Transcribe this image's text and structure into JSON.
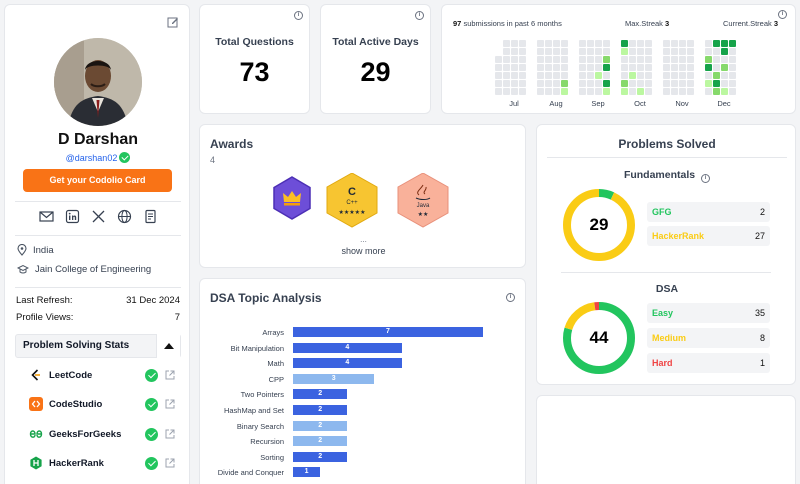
{
  "profile": {
    "name": "D Darshan",
    "handle": "@darshan02",
    "card_button": "Get your Codolio Card",
    "country": "India",
    "college": "Jain College of Engineering",
    "last_refresh_label": "Last Refresh:",
    "last_refresh_value": "31 Dec 2024",
    "profile_views_label": "Profile Views:",
    "profile_views_value": "7",
    "stats_header": "Problem Solving Stats",
    "platforms": [
      {
        "name": "LeetCode",
        "color": "#f59e0b"
      },
      {
        "name": "CodeStudio",
        "color": "#f97316"
      },
      {
        "name": "GeeksForGeeks",
        "color": "#16a34a"
      },
      {
        "name": "HackerRank",
        "color": "#16a34a"
      }
    ]
  },
  "stats": {
    "total_questions_label": "Total Questions",
    "total_questions_value": "73",
    "active_days_label": "Total Active Days",
    "active_days_value": "29"
  },
  "heatmap": {
    "submissions_count": "97",
    "submissions_text": "submissions in past 6 months",
    "max_streak_label": "Max.Streak",
    "max_streak_value": "3",
    "current_streak_label": "Current.Streak",
    "current_streak_value": "3",
    "months": [
      "Jul",
      "Aug",
      "Sep",
      "Oct",
      "Nov",
      "Dec"
    ]
  },
  "awards": {
    "title": "Awards",
    "count": "4",
    "badges": [
      {
        "label": "",
        "stars": "",
        "color": "#6d4ed8",
        "kind": "crown"
      },
      {
        "label": "C++",
        "stars": "★★★★★",
        "color": "#f7c531"
      },
      {
        "label": "Java",
        "stars": "★★",
        "color": "#f9b19a"
      }
    ],
    "ellipsis": "...",
    "show_more": "show more"
  },
  "dsa": {
    "title": "DSA Topic Analysis",
    "topics": [
      {
        "name": "Arrays",
        "value": 7
      },
      {
        "name": "Bit Manipulation",
        "value": 4
      },
      {
        "name": "Math",
        "value": 4
      },
      {
        "name": "CPP",
        "value": 3
      },
      {
        "name": "Two Pointers",
        "value": 2
      },
      {
        "name": "HashMap and Set",
        "value": 2
      },
      {
        "name": "Binary Search",
        "value": 2
      },
      {
        "name": "Recursion",
        "value": 2
      },
      {
        "name": "Sorting",
        "value": 2
      },
      {
        "name": "Divide and Conquer",
        "value": 1
      }
    ]
  },
  "solved": {
    "title": "Problems Solved",
    "fundamentals_title": "Fundamentals",
    "fundamentals_total": "29",
    "fundamentals": [
      {
        "name": "GFG",
        "value": 2,
        "color": "#22c55e"
      },
      {
        "name": "HackerRank",
        "value": 27,
        "color": "#facc15"
      }
    ],
    "dsa_title": "DSA",
    "dsa_total": "44",
    "dsa": [
      {
        "name": "Easy",
        "value": 35,
        "color": "#22c55e"
      },
      {
        "name": "Medium",
        "value": 8,
        "color": "#facc15"
      },
      {
        "name": "Hard",
        "value": 1,
        "color": "#ef4444"
      }
    ]
  }
}
